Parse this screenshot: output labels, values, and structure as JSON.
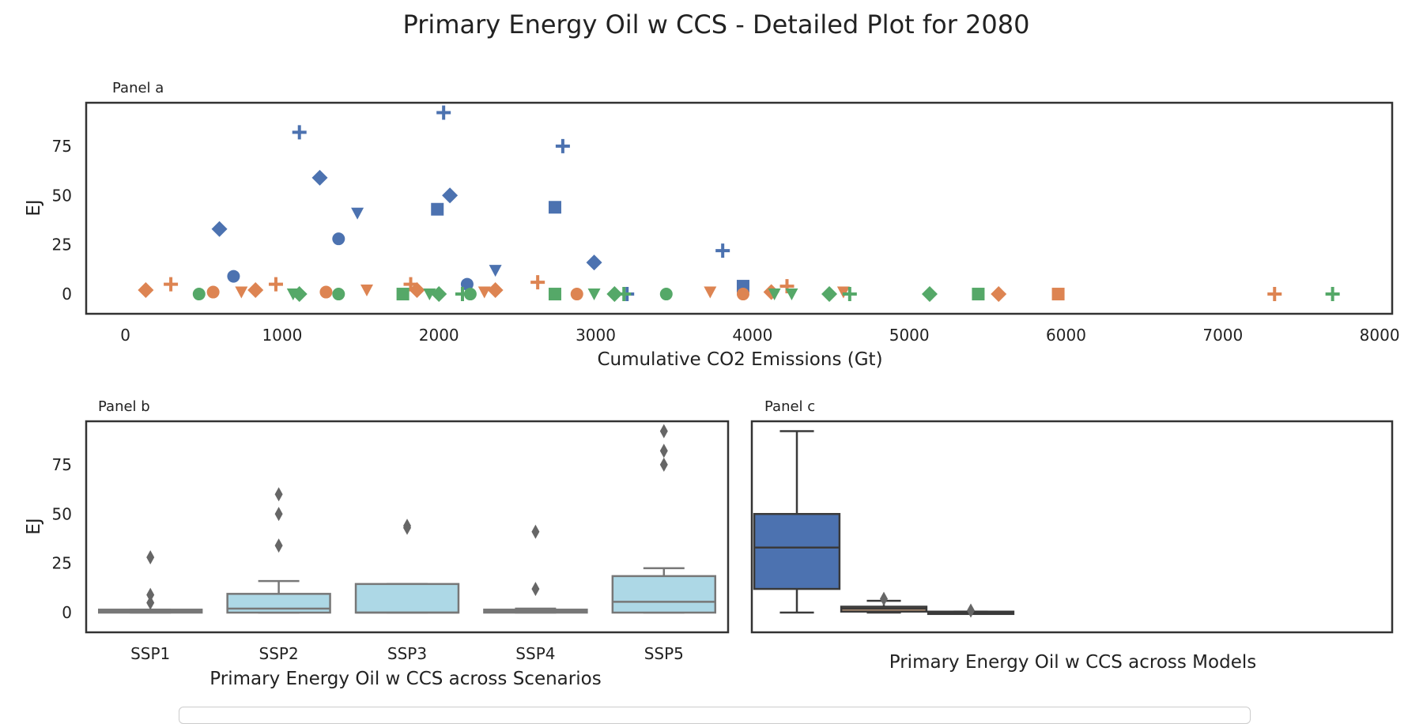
{
  "figure": {
    "title": "Primary Energy Oil w CCS - Detailed Plot for 2080"
  },
  "colors": {
    "blue": "#4c72b0",
    "orange": "#dd8452",
    "green": "#55a868",
    "box_light": "#add8e6",
    "box_edge": "#777777",
    "outlier": "#666666",
    "model_box_2": "#c49c7c"
  },
  "chart_data": [
    {
      "panel": "Panel a",
      "type": "scatter",
      "xlabel": "Cumulative CO2 Emissions (Gt)",
      "ylabel": "EJ",
      "xlim": [
        -250,
        8080
      ],
      "ylim": [
        -10,
        97
      ],
      "xticks": [
        0,
        1000,
        2000,
        3000,
        4000,
        5000,
        6000,
        7000,
        8000
      ],
      "yticks": [
        0,
        25,
        50,
        75
      ],
      "grid": false,
      "series": [
        {
          "color": "blue",
          "points": [
            {
              "x": 1110,
              "y": 82,
              "m": "plus"
            },
            {
              "x": 2030,
              "y": 92,
              "m": "plus"
            },
            {
              "x": 2790,
              "y": 75,
              "m": "plus"
            },
            {
              "x": 3810,
              "y": 22,
              "m": "plus"
            },
            {
              "x": 600,
              "y": 33,
              "m": "diamond"
            },
            {
              "x": 1240,
              "y": 59,
              "m": "diamond"
            },
            {
              "x": 2070,
              "y": 50,
              "m": "diamond"
            },
            {
              "x": 2990,
              "y": 16,
              "m": "diamond"
            },
            {
              "x": 1480,
              "y": 41,
              "m": "tri_down"
            },
            {
              "x": 2360,
              "y": 12,
              "m": "tri_down"
            },
            {
              "x": 1990,
              "y": 43,
              "m": "square"
            },
            {
              "x": 2740,
              "y": 44,
              "m": "square"
            },
            {
              "x": 3940,
              "y": 4,
              "m": "square"
            },
            {
              "x": 690,
              "y": 9,
              "m": "circle"
            },
            {
              "x": 1360,
              "y": 28,
              "m": "circle"
            },
            {
              "x": 2180,
              "y": 5,
              "m": "circle"
            },
            {
              "x": 3200,
              "y": 0,
              "m": "plus"
            }
          ]
        },
        {
          "color": "orange",
          "points": [
            {
              "x": 130,
              "y": 2,
              "m": "diamond"
            },
            {
              "x": 290,
              "y": 5,
              "m": "plus"
            },
            {
              "x": 560,
              "y": 1,
              "m": "circle"
            },
            {
              "x": 740,
              "y": 1,
              "m": "tri_down"
            },
            {
              "x": 830,
              "y": 2,
              "m": "diamond"
            },
            {
              "x": 960,
              "y": 5,
              "m": "plus"
            },
            {
              "x": 1280,
              "y": 1,
              "m": "circle"
            },
            {
              "x": 1540,
              "y": 2,
              "m": "tri_down"
            },
            {
              "x": 1820,
              "y": 5,
              "m": "plus"
            },
            {
              "x": 1860,
              "y": 2,
              "m": "diamond"
            },
            {
              "x": 2290,
              "y": 1,
              "m": "tri_down"
            },
            {
              "x": 2360,
              "y": 2,
              "m": "diamond"
            },
            {
              "x": 2630,
              "y": 6,
              "m": "plus"
            },
            {
              "x": 2880,
              "y": 0,
              "m": "circle"
            },
            {
              "x": 3730,
              "y": 1,
              "m": "tri_down"
            },
            {
              "x": 3940,
              "y": 0,
              "m": "circle"
            },
            {
              "x": 4120,
              "y": 1,
              "m": "diamond"
            },
            {
              "x": 4220,
              "y": 4,
              "m": "plus"
            },
            {
              "x": 4580,
              "y": 1,
              "m": "tri_down"
            },
            {
              "x": 5570,
              "y": 0,
              "m": "diamond"
            },
            {
              "x": 5950,
              "y": 0,
              "m": "square"
            },
            {
              "x": 7330,
              "y": 0,
              "m": "plus"
            }
          ]
        },
        {
          "color": "green",
          "points": [
            {
              "x": 470,
              "y": 0,
              "m": "circle"
            },
            {
              "x": 1070,
              "y": 0,
              "m": "tri_down"
            },
            {
              "x": 1110,
              "y": 0,
              "m": "diamond"
            },
            {
              "x": 1360,
              "y": 0,
              "m": "circle"
            },
            {
              "x": 1770,
              "y": 0,
              "m": "square"
            },
            {
              "x": 1940,
              "y": 0,
              "m": "tri_down"
            },
            {
              "x": 2000,
              "y": 0,
              "m": "diamond"
            },
            {
              "x": 2150,
              "y": 0,
              "m": "plus"
            },
            {
              "x": 2200,
              "y": 0,
              "m": "circle"
            },
            {
              "x": 2740,
              "y": 0,
              "m": "square"
            },
            {
              "x": 2990,
              "y": 0,
              "m": "tri_down"
            },
            {
              "x": 3120,
              "y": 0,
              "m": "diamond"
            },
            {
              "x": 3180,
              "y": 0,
              "m": "plus"
            },
            {
              "x": 3450,
              "y": 0,
              "m": "circle"
            },
            {
              "x": 4140,
              "y": 0,
              "m": "tri_down"
            },
            {
              "x": 4250,
              "y": 0,
              "m": "tri_down"
            },
            {
              "x": 4490,
              "y": 0,
              "m": "diamond"
            },
            {
              "x": 4620,
              "y": 0,
              "m": "plus"
            },
            {
              "x": 5130,
              "y": 0,
              "m": "diamond"
            },
            {
              "x": 5440,
              "y": 0,
              "m": "square"
            },
            {
              "x": 7700,
              "y": 0,
              "m": "plus"
            }
          ]
        }
      ]
    },
    {
      "panel": "Panel b",
      "type": "box",
      "xlabel": "Primary Energy Oil w CCS across Scenarios",
      "ylabel": "EJ",
      "ylim": [
        -10,
        97
      ],
      "yticks": [
        0,
        25,
        50,
        75
      ],
      "categories": [
        "SSP1",
        "SSP2",
        "SSP3",
        "SSP4",
        "SSP5"
      ],
      "boxes": [
        {
          "min": 0,
          "q1": 0,
          "median": 0.5,
          "q3": 1.5,
          "max": 1.5,
          "outliers": [
            5,
            9,
            28
          ]
        },
        {
          "min": 0,
          "q1": 0,
          "median": 2,
          "q3": 9.5,
          "max": 16,
          "outliers": [
            34,
            50,
            60
          ]
        },
        {
          "min": 0,
          "q1": 0,
          "median": 0,
          "q3": 14.5,
          "max": 14.5,
          "outliers": [
            43,
            44
          ]
        },
        {
          "min": 0,
          "q1": 0,
          "median": 0.5,
          "q3": 1.5,
          "max": 2,
          "outliers": [
            12,
            41
          ]
        },
        {
          "min": 0,
          "q1": 0,
          "median": 5.5,
          "q3": 18.5,
          "max": 22.5,
          "outliers": [
            75,
            82,
            92
          ]
        }
      ]
    },
    {
      "panel": "Panel c",
      "type": "box",
      "xlabel": "Primary Energy Oil w CCS across Models",
      "ylim": [
        -10,
        97
      ],
      "boxes": [
        {
          "color": "blue",
          "min": 0,
          "q1": 12,
          "median": 33,
          "q3": 50,
          "max": 92,
          "outliers": []
        },
        {
          "color": "model_box_2",
          "min": 0,
          "q1": 0.5,
          "median": 2,
          "q3": 3,
          "max": 6,
          "outliers": [
            7
          ]
        },
        {
          "color": "blue",
          "min": 0,
          "q1": 0,
          "median": 0,
          "q3": 0.5,
          "max": 0.5,
          "outliers": [
            1
          ]
        }
      ]
    }
  ]
}
